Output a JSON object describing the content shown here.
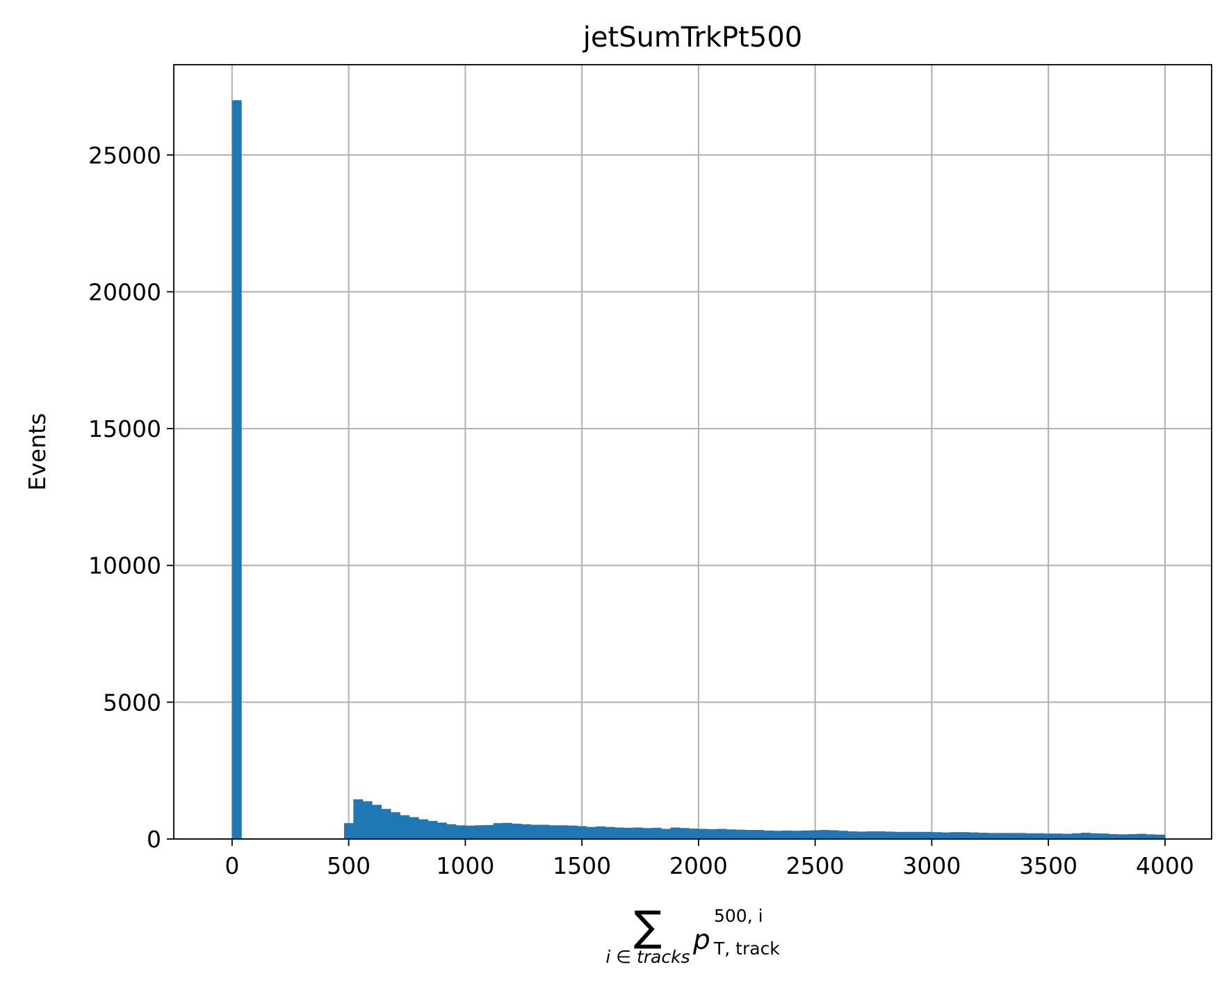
{
  "chart_data": {
    "type": "bar",
    "title": "jetSumTrkPt500",
    "xlabel": {
      "sum": "∑",
      "sub": "i ∈ tracks",
      "base": "p",
      "sup": "500, i",
      "subscript": "T, track"
    },
    "ylabel": "Events",
    "xlim": [
      -250,
      4200
    ],
    "ylim": [
      0,
      28300
    ],
    "xticks": [
      0,
      500,
      1000,
      1500,
      2000,
      2500,
      3000,
      3500,
      4000
    ],
    "xtick_labels": [
      "0",
      "500",
      "1000",
      "1500",
      "2000",
      "2500",
      "3000",
      "3500",
      "4000"
    ],
    "yticks": [
      0,
      5000,
      10000,
      15000,
      20000,
      25000
    ],
    "ytick_labels": [
      "0",
      "5000",
      "10000",
      "15000",
      "20000",
      "25000"
    ],
    "grid": true,
    "bar_color": "#1f77b4",
    "bin_width": 40,
    "bin_starts": [
      0,
      40,
      80,
      120,
      160,
      200,
      240,
      280,
      320,
      360,
      400,
      440,
      480,
      520,
      560,
      600,
      640,
      680,
      720,
      760,
      800,
      840,
      880,
      920,
      960,
      1000,
      1040,
      1080,
      1120,
      1160,
      1200,
      1240,
      1280,
      1320,
      1360,
      1400,
      1440,
      1480,
      1520,
      1560,
      1600,
      1640,
      1680,
      1720,
      1760,
      1800,
      1840,
      1880,
      1920,
      1960,
      2000,
      2040,
      2080,
      2120,
      2160,
      2200,
      2240,
      2280,
      2320,
      2360,
      2400,
      2440,
      2480,
      2520,
      2560,
      2600,
      2640,
      2680,
      2720,
      2760,
      2800,
      2840,
      2880,
      2920,
      2960,
      3000,
      3040,
      3080,
      3120,
      3160,
      3200,
      3240,
      3280,
      3320,
      3360,
      3400,
      3440,
      3480,
      3520,
      3560,
      3600,
      3640,
      3680,
      3720,
      3760,
      3800,
      3840,
      3880,
      3920,
      3960
    ],
    "values": [
      27000,
      0,
      0,
      0,
      0,
      0,
      0,
      0,
      0,
      0,
      0,
      0,
      580,
      1450,
      1380,
      1250,
      1100,
      980,
      870,
      800,
      720,
      660,
      600,
      540,
      500,
      490,
      500,
      510,
      580,
      590,
      560,
      540,
      520,
      520,
      500,
      500,
      490,
      470,
      440,
      460,
      440,
      420,
      410,
      420,
      400,
      410,
      370,
      420,
      400,
      380,
      370,
      360,
      370,
      350,
      340,
      330,
      330,
      310,
      300,
      310,
      300,
      310,
      320,
      330,
      320,
      300,
      280,
      270,
      280,
      280,
      270,
      260,
      260,
      260,
      260,
      250,
      240,
      250,
      250,
      240,
      230,
      220,
      220,
      220,
      220,
      210,
      210,
      200,
      200,
      190,
      210,
      230,
      210,
      200,
      180,
      170,
      180,
      190,
      170,
      160
    ]
  }
}
